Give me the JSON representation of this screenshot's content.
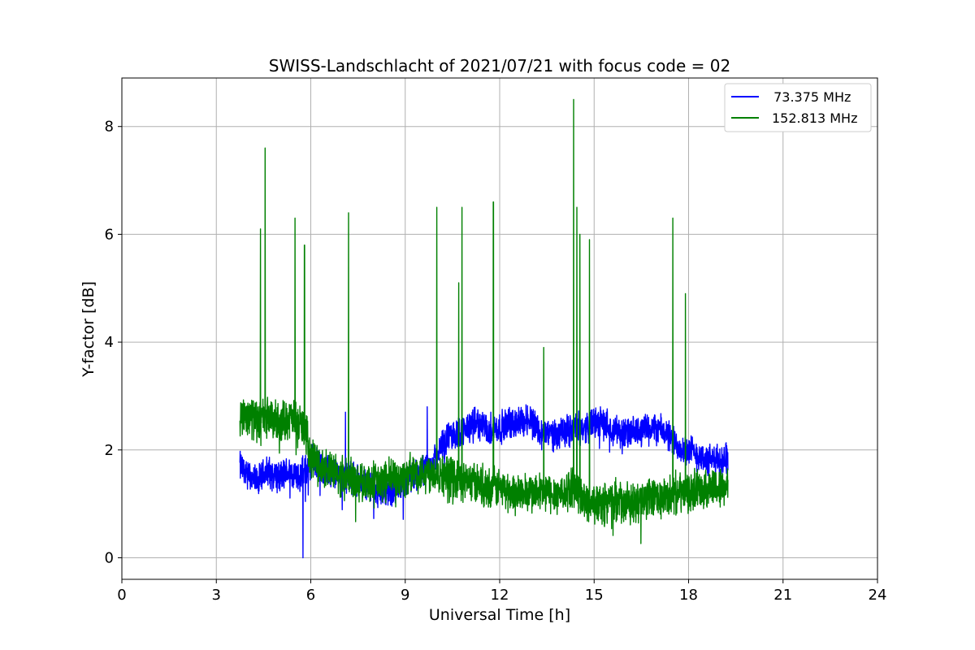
{
  "chart_data": {
    "type": "line",
    "title": "SWISS-Landschlacht of 2021/07/21 with focus code = 02",
    "xlabel": "Universal Time [h]",
    "ylabel": "Y-factor [dB]",
    "xlim": [
      0,
      24
    ],
    "ylim": [
      -0.4,
      8.9
    ],
    "xticks": [
      0,
      3,
      6,
      9,
      12,
      15,
      18,
      21,
      24
    ],
    "yticks": [
      0,
      2,
      4,
      6,
      8
    ],
    "grid": true,
    "legend_position": "top-right",
    "series": [
      {
        "name": " 73.375 MHz",
        "color": "#0000ff",
        "x": [
          3.75,
          4.0,
          4.3,
          4.6,
          5.0,
          5.3,
          5.6,
          5.8,
          6.0,
          6.3,
          6.6,
          7.0,
          7.3,
          7.6,
          8.0,
          8.3,
          8.6,
          9.0,
          9.3,
          9.6,
          9.8,
          10.0,
          10.3,
          10.6,
          11.0,
          11.3,
          11.6,
          12.0,
          12.3,
          12.6,
          13.0,
          13.3,
          13.6,
          14.0,
          14.3,
          14.6,
          15.0,
          15.3,
          15.6,
          16.0,
          16.3,
          16.6,
          17.0,
          17.3,
          17.6,
          18.0,
          18.3,
          18.6,
          19.0,
          19.25
        ],
        "y": [
          1.7,
          1.5,
          1.4,
          1.6,
          1.5,
          1.6,
          1.5,
          1.6,
          1.8,
          1.7,
          1.6,
          1.5,
          1.5,
          1.4,
          1.3,
          1.2,
          1.3,
          1.4,
          1.5,
          1.6,
          1.7,
          1.9,
          2.2,
          2.3,
          2.4,
          2.5,
          2.4,
          2.4,
          2.5,
          2.5,
          2.6,
          2.3,
          2.3,
          2.3,
          2.4,
          2.4,
          2.5,
          2.5,
          2.4,
          2.3,
          2.3,
          2.4,
          2.4,
          2.3,
          2.1,
          2.0,
          1.9,
          1.8,
          1.8,
          1.9
        ]
      },
      {
        "name": "152.813 MHz",
        "color": "#008000",
        "x": [
          3.75,
          4.0,
          4.3,
          4.6,
          5.0,
          5.3,
          5.6,
          5.8,
          6.0,
          6.3,
          6.6,
          7.0,
          7.3,
          7.6,
          8.0,
          8.3,
          8.6,
          9.0,
          9.3,
          9.6,
          9.8,
          10.0,
          10.3,
          10.6,
          11.0,
          11.3,
          11.6,
          12.0,
          12.3,
          12.6,
          13.0,
          13.3,
          13.6,
          14.0,
          14.3,
          14.6,
          15.0,
          15.3,
          15.6,
          16.0,
          16.3,
          16.6,
          17.0,
          17.3,
          17.6,
          18.0,
          18.3,
          18.6,
          19.0,
          19.25
        ],
        "y": [
          2.6,
          2.7,
          2.5,
          2.6,
          2.5,
          2.6,
          2.5,
          2.4,
          1.9,
          1.7,
          1.6,
          1.5,
          1.5,
          1.4,
          1.4,
          1.4,
          1.5,
          1.5,
          1.6,
          1.6,
          1.6,
          1.6,
          1.5,
          1.5,
          1.4,
          1.4,
          1.3,
          1.3,
          1.2,
          1.2,
          1.2,
          1.2,
          1.2,
          1.2,
          1.3,
          1.1,
          1.0,
          1.0,
          1.1,
          1.0,
          1.0,
          1.1,
          1.1,
          1.1,
          1.2,
          1.2,
          1.3,
          1.3,
          1.3,
          1.3
        ]
      }
    ],
    "spikes": [
      {
        "series": 1,
        "x": 4.4,
        "y": 6.1
      },
      {
        "series": 1,
        "x": 4.55,
        "y": 7.6
      },
      {
        "series": 1,
        "x": 5.5,
        "y": 6.3
      },
      {
        "series": 1,
        "x": 5.8,
        "y": 5.8
      },
      {
        "series": 1,
        "x": 7.2,
        "y": 6.4
      },
      {
        "series": 1,
        "x": 10.0,
        "y": 6.5
      },
      {
        "series": 1,
        "x": 10.7,
        "y": 5.1
      },
      {
        "series": 1,
        "x": 10.8,
        "y": 6.5
      },
      {
        "series": 1,
        "x": 11.8,
        "y": 6.6
      },
      {
        "series": 1,
        "x": 13.4,
        "y": 3.9
      },
      {
        "series": 1,
        "x": 14.35,
        "y": 8.5
      },
      {
        "series": 1,
        "x": 14.45,
        "y": 6.5
      },
      {
        "series": 1,
        "x": 14.55,
        "y": 6.0
      },
      {
        "series": 1,
        "x": 14.85,
        "y": 5.9
      },
      {
        "series": 1,
        "x": 17.5,
        "y": 6.3
      },
      {
        "series": 1,
        "x": 17.9,
        "y": 4.9
      },
      {
        "series": 0,
        "x": 7.1,
        "y": 2.7
      },
      {
        "series": 0,
        "x": 9.7,
        "y": 2.8
      },
      {
        "series": 0,
        "x": 5.75,
        "y": 0.0
      }
    ]
  }
}
